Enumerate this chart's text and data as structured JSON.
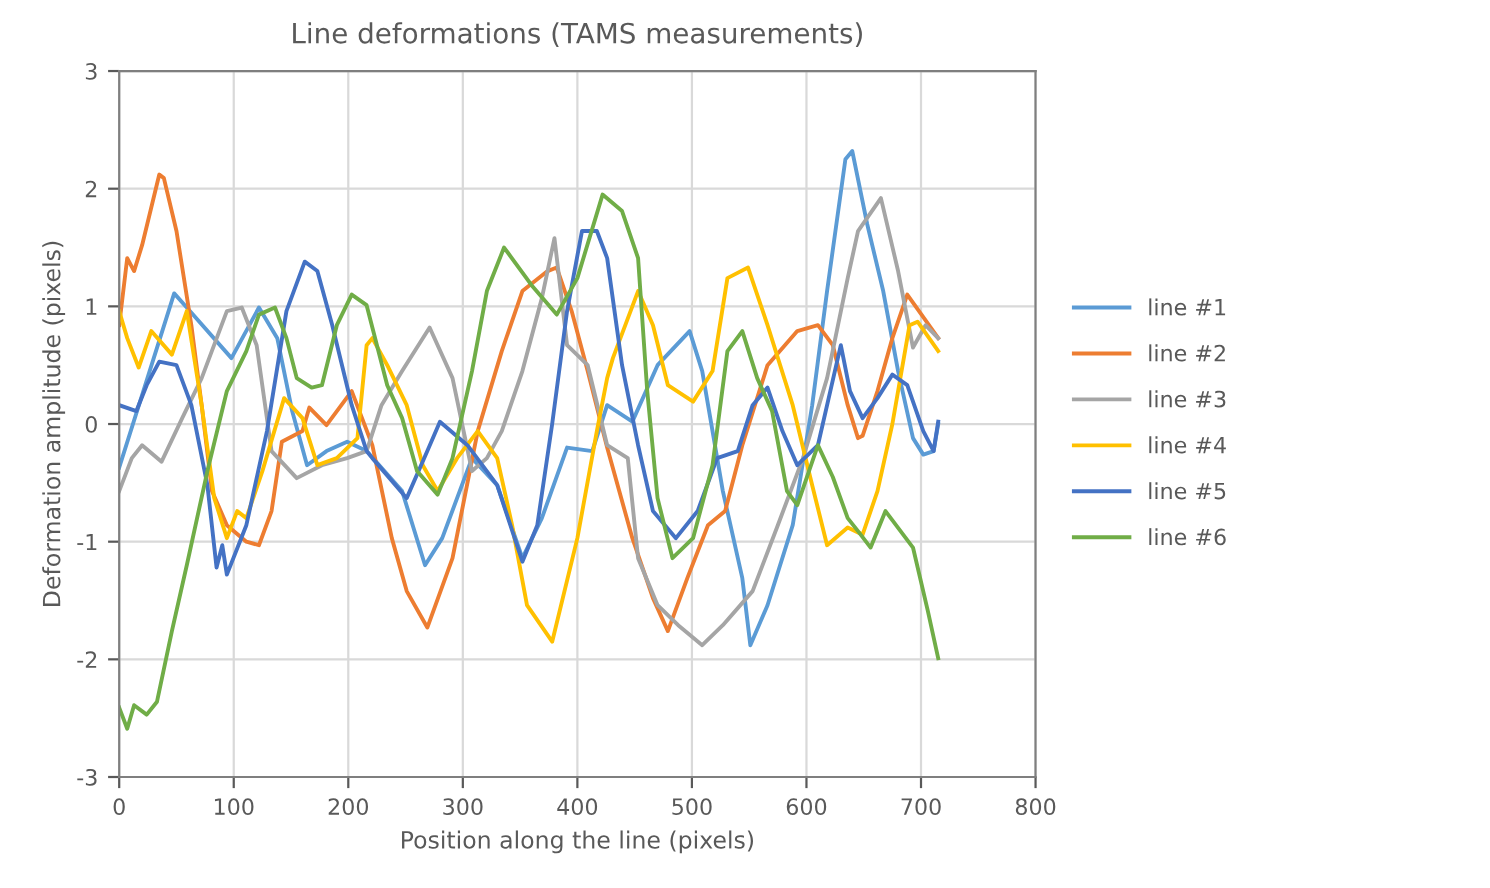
{
  "chart_data": {
    "type": "line",
    "title": "Line deformations (TAMS measurements)",
    "xlabel": "Position along the line (pixels)",
    "ylabel": "Deformation amplitude (pixels)",
    "xlim": [
      0,
      800
    ],
    "xticks": [
      0,
      100,
      200,
      300,
      400,
      500,
      600,
      700,
      800
    ],
    "ylim": [
      -3,
      3
    ],
    "yticks": [
      -3,
      -2,
      -1,
      0,
      1,
      2,
      3
    ],
    "grid": true,
    "legend": "right",
    "marker": "none",
    "line_style": "solid",
    "series": [
      {
        "name": "line #1",
        "color": "#5b9bd5",
        "x": [
          0,
          48,
          59,
          98,
          122,
          138,
          151,
          164,
          181,
          199,
          216,
          247,
          267,
          282,
          308,
          330,
          352,
          369,
          391,
          413,
          426,
          448,
          470,
          498,
          509,
          527,
          544,
          551,
          566,
          588,
          605,
          618,
          634,
          640,
          653,
          667,
          680,
          693,
          702,
          711,
          715
        ],
        "values": [
          -0.37,
          1.11,
          0.99,
          0.56,
          0.99,
          0.73,
          0.11,
          -0.35,
          -0.23,
          -0.15,
          -0.23,
          -0.57,
          -1.2,
          -0.97,
          -0.29,
          -0.52,
          -1.14,
          -0.8,
          -0.2,
          -0.23,
          0.16,
          0.02,
          0.5,
          0.79,
          0.45,
          -0.57,
          -1.31,
          -1.88,
          -1.54,
          -0.86,
          0.16,
          1.13,
          2.25,
          2.32,
          1.7,
          1.13,
          0.45,
          -0.12,
          -0.26,
          -0.23,
          0
        ]
      },
      {
        "name": "line #2",
        "color": "#ed7d31",
        "x": [
          0,
          7,
          13,
          20,
          35,
          39,
          50,
          63,
          72,
          81,
          94,
          111,
          122,
          133,
          142,
          160,
          166,
          181,
          203,
          221,
          238,
          251,
          269,
          291,
          313,
          334,
          352,
          374,
          382,
          395,
          409,
          426,
          448,
          466,
          479,
          496,
          514,
          529,
          544,
          566,
          592,
          610,
          623,
          636,
          645,
          649,
          662,
          675,
          688,
          715
        ],
        "values": [
          0.84,
          1.41,
          1.3,
          1.52,
          2.12,
          2.09,
          1.64,
          0.84,
          0.16,
          -0.57,
          -0.86,
          -1.0,
          -1.03,
          -0.74,
          -0.15,
          -0.06,
          0.14,
          -0.01,
          0.28,
          -0.18,
          -0.97,
          -1.42,
          -1.73,
          -1.14,
          -0.06,
          0.62,
          1.13,
          1.3,
          1.33,
          0.96,
          0.45,
          -0.2,
          -0.97,
          -1.48,
          -1.76,
          -1.31,
          -0.86,
          -0.74,
          -0.18,
          0.5,
          0.79,
          0.84,
          0.67,
          0.16,
          -0.12,
          -0.1,
          0.28,
          0.73,
          1.1,
          0.73
        ]
      },
      {
        "name": "line #3",
        "color": "#a5a5a5",
        "x": [
          0,
          11,
          20,
          37,
          55,
          72,
          94,
          107,
          120,
          133,
          155,
          177,
          199,
          216,
          229,
          247,
          271,
          291,
          308,
          321,
          334,
          352,
          369,
          380,
          391,
          409,
          426,
          444,
          453,
          470,
          488,
          509,
          527,
          553,
          575,
          597,
          618,
          636,
          645,
          665,
          680,
          693,
          704,
          715
        ],
        "values": [
          -0.57,
          -0.29,
          -0.18,
          -0.32,
          0.05,
          0.39,
          0.96,
          0.99,
          0.67,
          -0.23,
          -0.46,
          -0.35,
          -0.29,
          -0.23,
          0.16,
          0.45,
          0.82,
          0.39,
          -0.4,
          -0.29,
          -0.06,
          0.45,
          1.07,
          1.58,
          0.67,
          0.5,
          -0.18,
          -0.29,
          -1.14,
          -1.54,
          -1.71,
          -1.88,
          -1.71,
          -1.42,
          -0.86,
          -0.29,
          0.39,
          1.24,
          1.64,
          1.92,
          1.3,
          0.65,
          0.84,
          0.73
        ]
      },
      {
        "name": "line #4",
        "color": "#ffc000",
        "x": [
          0,
          7,
          17,
          28,
          46,
          59,
          72,
          83,
          94,
          103,
          111,
          125,
          144,
          160,
          173,
          190,
          208,
          216,
          221,
          234,
          251,
          265,
          278,
          295,
          313,
          330,
          343,
          356,
          378,
          400,
          417,
          426,
          431,
          453,
          466,
          479,
          501,
          518,
          531,
          549,
          566,
          588,
          605,
          618,
          636,
          649,
          662,
          675,
          690,
          697,
          715
        ],
        "values": [
          0.96,
          0.73,
          0.48,
          0.79,
          0.59,
          0.96,
          0.16,
          -0.63,
          -0.97,
          -0.74,
          -0.8,
          -0.4,
          0.22,
          0.05,
          -0.35,
          -0.29,
          -0.12,
          0.67,
          0.73,
          0.5,
          0.16,
          -0.35,
          -0.57,
          -0.29,
          -0.06,
          -0.29,
          -0.86,
          -1.54,
          -1.85,
          -0.97,
          -0.06,
          0.39,
          0.56,
          1.13,
          0.84,
          0.33,
          0.19,
          0.45,
          1.24,
          1.33,
          0.84,
          0.16,
          -0.52,
          -1.03,
          -0.88,
          -0.94,
          -0.57,
          0,
          0.84,
          0.87,
          0.62
        ]
      },
      {
        "name": "line #5",
        "color": "#4472c4",
        "x": [
          0,
          15,
          24,
          35,
          50,
          63,
          77,
          85,
          90,
          94,
          111,
          129,
          146,
          162,
          173,
          186,
          203,
          216,
          221,
          251,
          269,
          280,
          304,
          330,
          352,
          365,
          378,
          391,
          404,
          417,
          426,
          439,
          453,
          466,
          486,
          505,
          522,
          540,
          553,
          566,
          579,
          592,
          610,
          630,
          638,
          649,
          662,
          675,
          688,
          702,
          711,
          715
        ],
        "values": [
          0.16,
          0.11,
          0.33,
          0.53,
          0.5,
          0.16,
          -0.52,
          -1.22,
          -1.03,
          -1.28,
          -0.86,
          -0.06,
          0.96,
          1.38,
          1.3,
          0.84,
          0.16,
          -0.23,
          -0.29,
          -0.63,
          -0.23,
          0.02,
          -0.18,
          -0.52,
          -1.17,
          -0.86,
          0,
          0.96,
          1.64,
          1.64,
          1.41,
          0.5,
          -0.18,
          -0.74,
          -0.97,
          -0.74,
          -0.29,
          -0.23,
          0.16,
          0.31,
          -0.06,
          -0.35,
          -0.18,
          0.67,
          0.28,
          0.05,
          0.22,
          0.42,
          0.33,
          -0.06,
          -0.23,
          0.02
        ]
      },
      {
        "name": "line #6",
        "color": "#70ad47",
        "x": [
          0,
          7,
          13,
          24,
          33,
          46,
          59,
          77,
          94,
          111,
          122,
          136,
          146,
          155,
          168,
          177,
          190,
          203,
          216,
          234,
          247,
          260,
          278,
          291,
          308,
          321,
          336,
          360,
          382,
          400,
          422,
          439,
          453,
          461,
          470,
          483,
          501,
          518,
          531,
          544,
          557,
          570,
          583,
          592,
          610,
          623,
          636,
          645,
          656,
          669,
          693,
          706,
          715
        ],
        "values": [
          -2.41,
          -2.59,
          -2.39,
          -2.47,
          -2.36,
          -1.76,
          -1.2,
          -0.4,
          0.28,
          0.62,
          0.93,
          0.99,
          0.73,
          0.39,
          0.31,
          0.33,
          0.84,
          1.1,
          1.01,
          0.33,
          0.05,
          -0.4,
          -0.6,
          -0.29,
          0.45,
          1.13,
          1.5,
          1.18,
          0.93,
          1.24,
          1.95,
          1.81,
          1.41,
          0.28,
          -0.63,
          -1.14,
          -0.97,
          -0.35,
          0.62,
          0.79,
          0.39,
          0.11,
          -0.57,
          -0.69,
          -0.18,
          -0.45,
          -0.8,
          -0.91,
          -1.05,
          -0.74,
          -1.05,
          -1.59,
          -1.99
        ]
      }
    ]
  }
}
